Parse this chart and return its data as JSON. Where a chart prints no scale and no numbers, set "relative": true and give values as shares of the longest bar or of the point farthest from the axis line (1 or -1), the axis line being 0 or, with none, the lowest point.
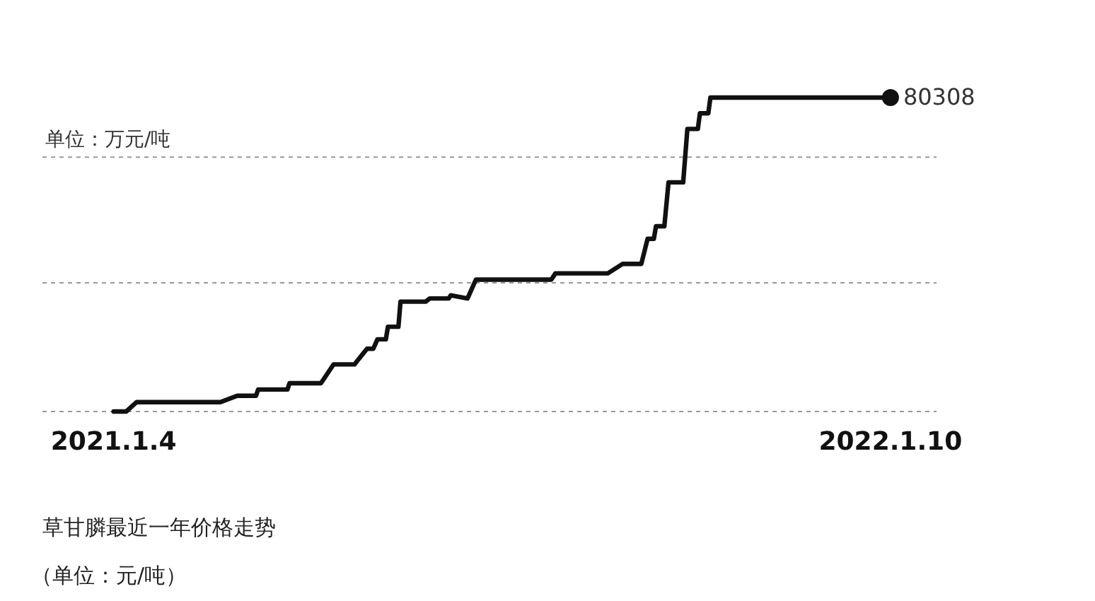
{
  "chart_data": {
    "type": "line",
    "title": "草甘膦最近一年价格走势",
    "subtitle": "（单位：元/吨）",
    "relative": true,
    "x": [
      "2021-01-04",
      "2021-01-10",
      "2021-01-15",
      "2021-02-24",
      "2021-03-04",
      "2021-03-13",
      "2021-03-14",
      "2021-03-28",
      "2021-03-29",
      "2021-04-13",
      "2021-04-15",
      "2021-04-19",
      "2021-04-29",
      "2021-05-05",
      "2021-05-08",
      "2021-05-10",
      "2021-05-14",
      "2021-05-15",
      "2021-05-20",
      "2021-05-21",
      "2021-06-02",
      "2021-06-04",
      "2021-06-13",
      "2021-06-14",
      "2021-06-22",
      "2021-06-26",
      "2021-08-01",
      "2021-08-03",
      "2021-08-28",
      "2021-09-04",
      "2021-09-13",
      "2021-09-16",
      "2021-09-19",
      "2021-09-20",
      "2021-09-24",
      "2021-09-26",
      "2021-10-03",
      "2021-10-05",
      "2021-10-10",
      "2021-10-11",
      "2021-10-15",
      "2021-10-16",
      "2022-01-10"
    ],
    "series": [
      {
        "color": "#111111",
        "values": [
          0,
          0,
          0.03,
          0.03,
          0.05,
          0.05,
          0.07,
          0.07,
          0.09,
          0.09,
          0.11,
          0.15,
          0.15,
          0.2,
          0.2,
          0.23,
          0.23,
          0.27,
          0.27,
          0.35,
          0.35,
          0.36,
          0.36,
          0.37,
          0.36,
          0.42,
          0.42,
          0.44,
          0.44,
          0.47,
          0.47,
          0.55,
          0.55,
          0.59,
          0.59,
          0.73,
          0.73,
          0.9,
          0.9,
          0.95,
          0.95,
          1,
          1
        ]
      }
    ],
    "xlim": [
      "2020-12-01",
      "2022-02-01"
    ],
    "xticks": [
      {
        "value": "2021-01-04",
        "label": "2021.1.4"
      },
      {
        "value": "2022-01-10",
        "label": "2022.1.10"
      }
    ],
    "annotations": [
      {
        "text": "80308",
        "x": "2022-01-10",
        "y": 1
      }
    ],
    "ref_lines": [
      {
        "axis": "y",
        "value": 0.81,
        "label": "单位：万元/吨",
        "color": "#999999",
        "line_style": "dashed"
      },
      {
        "axis": "y",
        "value": 0.41,
        "color": "#999999",
        "line_style": "dashed"
      },
      {
        "axis": "y",
        "value": 0,
        "color": "#999999",
        "line_style": "dashed"
      }
    ]
  }
}
